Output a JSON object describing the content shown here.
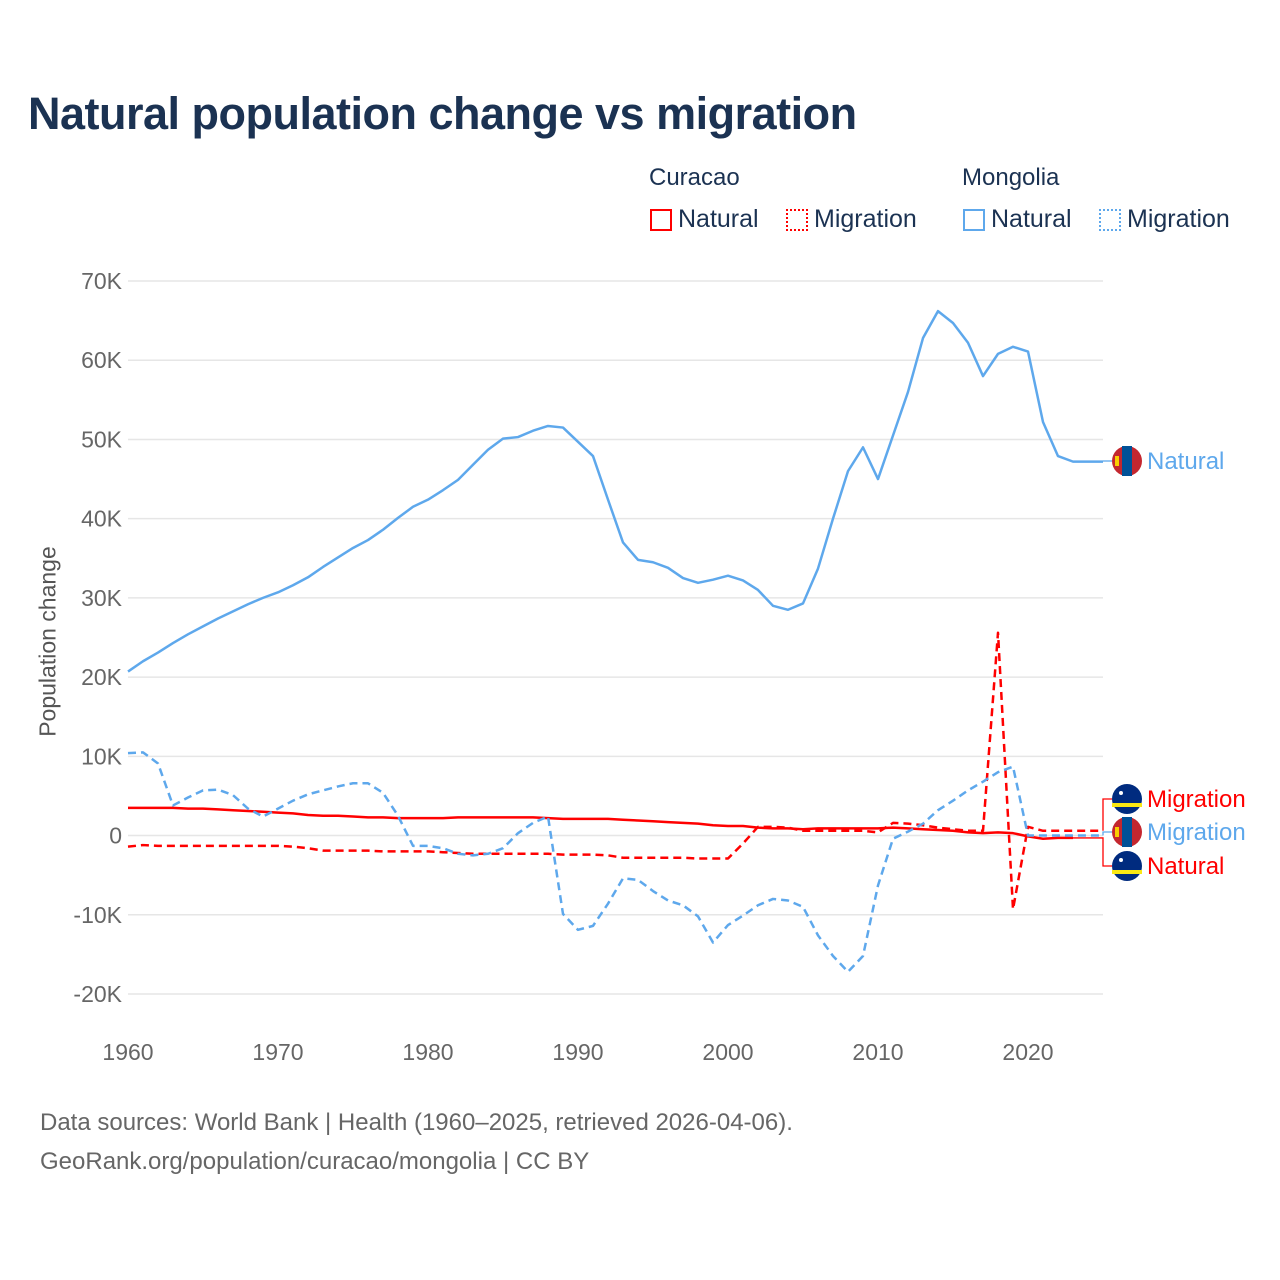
{
  "title": "Natural population change vs migration",
  "legend": {
    "groups": [
      {
        "name": "Curacao",
        "items": [
          {
            "label": "Natural",
            "style": "solid"
          },
          {
            "label": "Migration",
            "style": "dotted"
          }
        ],
        "color": "#ff0000"
      },
      {
        "name": "Mongolia",
        "items": [
          {
            "label": "Natural",
            "style": "solid"
          },
          {
            "label": "Migration",
            "style": "dotted"
          }
        ],
        "color": "#5ea8ec"
      }
    ]
  },
  "footer": {
    "line1": "Data sources: World Bank | Health (1960–2025, retrieved 2026-04-06).",
    "line2": "GeoRank.org/population/curacao/mongolia | CC BY"
  },
  "chart_data": {
    "type": "line",
    "title": "Natural population change vs migration",
    "xlabel": "",
    "ylabel": "Population change",
    "xlim": [
      1960,
      2025
    ],
    "ylim": [
      -20000,
      70000
    ],
    "xticks": [
      1960,
      1970,
      1980,
      1990,
      2000,
      2010,
      2020
    ],
    "xtick_labels": [
      "1960",
      "1970",
      "1980",
      "1990",
      "2000",
      "2010",
      "2020"
    ],
    "yticks": [
      -20000,
      -10000,
      0,
      10000,
      20000,
      30000,
      40000,
      50000,
      60000,
      70000
    ],
    "ytick_labels": [
      "-20K",
      "-10K",
      "0",
      "10K",
      "20K",
      "30K",
      "40K",
      "50K",
      "60K",
      "70K"
    ],
    "grid": true,
    "legend_position": "top-right",
    "series": [
      {
        "name": "Mongolia Natural",
        "end_label": "Natural",
        "color": "#5ea8ec",
        "dash": false,
        "flag": "mongolia",
        "start": 1960,
        "values": [
          20.7,
          22.0,
          23.1,
          24.3,
          25.4,
          26.4,
          27.4,
          28.3,
          29.2,
          30.0,
          30.7,
          31.6,
          32.6,
          33.9,
          35.1,
          36.3,
          37.3,
          38.6,
          40.1,
          41.5,
          42.4,
          43.6,
          44.9,
          46.8,
          48.7,
          50.1,
          50.3,
          51.1,
          51.7,
          51.5,
          49.7,
          47.9,
          42.4,
          37.0,
          34.8,
          34.5,
          33.8,
          32.5,
          31.9,
          32.3,
          32.8,
          32.2,
          31.0,
          29.0,
          28.5,
          29.3,
          33.7,
          40.0,
          46.0,
          49.0,
          45.0,
          50.5,
          56.0,
          62.8,
          66.2,
          64.7,
          62.2,
          58.0,
          60.8,
          61.7,
          61.1,
          52.2,
          47.9,
          47.2,
          47.2,
          47.2
        ]
      },
      {
        "name": "Mongolia Migration",
        "end_label": "Migration",
        "color": "#5ea8ec",
        "dash": true,
        "flag": "mongolia",
        "start": 1960,
        "values": [
          10.4,
          10.5,
          9.1,
          3.8,
          4.8,
          5.7,
          5.8,
          5.1,
          3.4,
          2.4,
          3.4,
          4.4,
          5.2,
          5.7,
          6.2,
          6.6,
          6.6,
          5.4,
          2.5,
          -1.3,
          -1.3,
          -1.6,
          -2.3,
          -2.5,
          -2.3,
          -1.6,
          0.3,
          1.6,
          2.4,
          -9.9,
          -11.9,
          -11.4,
          -8.6,
          -5.4,
          -5.6,
          -7.0,
          -8.2,
          -8.8,
          -10.2,
          -13.5,
          -11.3,
          -10.1,
          -8.8,
          -8.0,
          -8.2,
          -9.0,
          -12.6,
          -15.2,
          -17.2,
          -15.2,
          -6.3,
          -0.4,
          0.5,
          1.5,
          3.2,
          4.4,
          5.7,
          6.8,
          8.0,
          8.7,
          0.0,
          0.0,
          0.0,
          0.0,
          0.0,
          0.0
        ]
      },
      {
        "name": "Curacao Natural",
        "end_label": "Natural",
        "color": "#ff0000",
        "dash": false,
        "flag": "curacao",
        "start": 1960,
        "values": [
          3.5,
          3.5,
          3.5,
          3.5,
          3.4,
          3.4,
          3.3,
          3.2,
          3.1,
          3.0,
          2.9,
          2.8,
          2.6,
          2.5,
          2.5,
          2.4,
          2.3,
          2.3,
          2.2,
          2.2,
          2.2,
          2.2,
          2.3,
          2.3,
          2.3,
          2.3,
          2.3,
          2.3,
          2.2,
          2.1,
          2.1,
          2.1,
          2.1,
          2.0,
          1.9,
          1.8,
          1.7,
          1.6,
          1.5,
          1.3,
          1.2,
          1.2,
          1.0,
          0.9,
          0.9,
          0.8,
          0.9,
          0.9,
          0.9,
          0.9,
          0.9,
          1.0,
          0.9,
          0.8,
          0.7,
          0.6,
          0.4,
          0.3,
          0.4,
          0.3,
          -0.1,
          -0.4,
          -0.3,
          -0.3
        ]
      },
      {
        "name": "Curacao Migration",
        "end_label": "Migration",
        "color": "#ff0000",
        "dash": true,
        "flag": "curacao",
        "start": 1960,
        "values": [
          -1.4,
          -1.2,
          -1.3,
          -1.3,
          -1.3,
          -1.3,
          -1.3,
          -1.3,
          -1.3,
          -1.3,
          -1.3,
          -1.4,
          -1.6,
          -1.9,
          -1.9,
          -1.9,
          -1.9,
          -2.0,
          -2.0,
          -2.0,
          -2.0,
          -2.1,
          -2.2,
          -2.3,
          -2.3,
          -2.3,
          -2.3,
          -2.3,
          -2.3,
          -2.4,
          -2.4,
          -2.4,
          -2.5,
          -2.8,
          -2.8,
          -2.8,
          -2.8,
          -2.8,
          -2.9,
          -2.9,
          -2.9,
          -1.0,
          1.1,
          1.1,
          1.0,
          0.6,
          0.6,
          0.6,
          0.6,
          0.6,
          0.4,
          1.6,
          1.5,
          1.3,
          1.0,
          0.8,
          0.6,
          0.6,
          25.6,
          -9.3,
          1.1,
          0.6,
          0.6,
          0.6,
          0.6,
          0.6
        ]
      }
    ],
    "value_unit": "thousands"
  }
}
